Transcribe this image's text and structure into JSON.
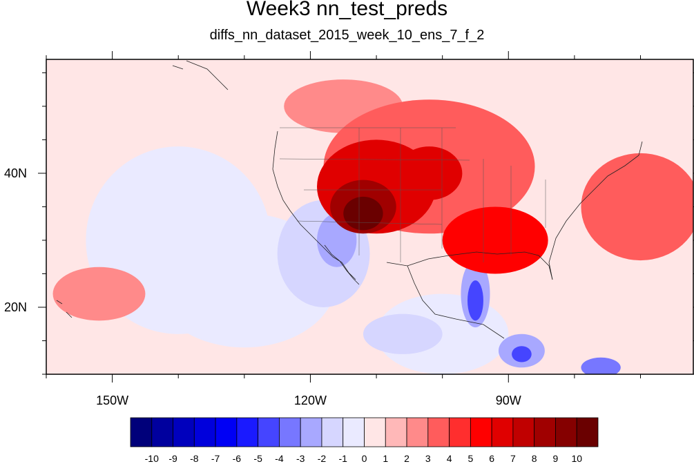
{
  "title": "Week3 nn_test_preds",
  "subtitle": "diffs_nn_dataset_2015_week_10_ens_7_f_2",
  "chart_data": {
    "type": "heatmap",
    "projection": "cylindrical-equidistant",
    "lon_range": [
      -160,
      -62
    ],
    "lat_range": [
      10,
      57
    ],
    "x_ticks": [
      {
        "value": -150,
        "label": "150W"
      },
      {
        "value": -120,
        "label": "120W"
      },
      {
        "value": -90,
        "label": "90W"
      }
    ],
    "y_ticks": [
      {
        "value": 20,
        "label": "20N"
      },
      {
        "value": 40,
        "label": "40N"
      }
    ],
    "colorbar": {
      "levels": [
        -10,
        -9,
        -8,
        -7,
        -6,
        -5,
        -4,
        -3,
        -2,
        -1,
        0,
        1,
        2,
        3,
        4,
        5,
        6,
        7,
        8,
        9,
        10
      ],
      "colors": [
        "#00007a",
        "#00009e",
        "#0000bd",
        "#0000dc",
        "#0000f5",
        "#1a1aff",
        "#4545ff",
        "#7777ff",
        "#a8a8ff",
        "#d6d6ff",
        "#eaeaff",
        "#ffe6e6",
        "#ffb8b8",
        "#ff8a8a",
        "#ff5c5c",
        "#ff2e2e",
        "#ff0000",
        "#e00000",
        "#c00000",
        "#a00000",
        "#850000",
        "#6a0000"
      ]
    },
    "background_anomaly": 0.5,
    "anomaly_regions": [
      {
        "desc": "cool Pacific",
        "lon": -140,
        "lat": 30,
        "value": -1,
        "rlon": 14,
        "rlat": 14
      },
      {
        "desc": "cool Pacific south",
        "lon": -130,
        "lat": 24,
        "value": -1,
        "rlon": 14,
        "rlat": 10
      },
      {
        "desc": "cool Pacific mid",
        "lon": -118,
        "lat": 28,
        "value": -2,
        "rlon": 7,
        "rlat": 8
      },
      {
        "desc": "cool Pacific coast",
        "lon": -116,
        "lat": 30,
        "value": -3,
        "rlon": 3,
        "rlat": 4
      },
      {
        "desc": "cool east Pacific",
        "lon": -100,
        "lat": 16,
        "value": -1,
        "rlon": 10,
        "rlat": 6
      },
      {
        "desc": "cool east Pacific",
        "lon": -106,
        "lat": 16,
        "value": -2,
        "rlon": 6,
        "rlat": 3
      },
      {
        "desc": "cool Gulf of Mexico",
        "lon": -95,
        "lat": 22,
        "value": -3,
        "rlon": 2.2,
        "rlat": 5
      },
      {
        "desc": "cool Gulf of Mexico core",
        "lon": -95,
        "lat": 21,
        "value": -5,
        "rlon": 1.2,
        "rlat": 3
      },
      {
        "desc": "cool Caribbean",
        "lon": -88,
        "lat": 13.5,
        "value": -3,
        "rlon": 3.5,
        "rlat": 2.5
      },
      {
        "desc": "cool Caribbean core",
        "lon": -88,
        "lat": 13,
        "value": -5,
        "rlon": 1.5,
        "rlat": 1.2
      },
      {
        "desc": "cool south edge",
        "lon": -76,
        "lat": 11,
        "value": -4,
        "rlon": 3,
        "rlat": 1.5
      },
      {
        "desc": "warm North America",
        "lon": -102,
        "lat": 41,
        "value": 3,
        "rlon": 16,
        "rlat": 10
      },
      {
        "desc": "warm Gulf coast",
        "lon": -92,
        "lat": 30,
        "value": 5,
        "rlon": 8,
        "rlat": 5
      },
      {
        "desc": "warm Atlantic",
        "lon": -70,
        "lat": 35,
        "value": 3,
        "rlon": 9,
        "rlat": 8
      },
      {
        "desc": "warm west",
        "lon": -110,
        "lat": 38,
        "value": 6,
        "rlon": 9,
        "rlat": 7
      },
      {
        "desc": "warm plains",
        "lon": -102,
        "lat": 40,
        "value": 6,
        "rlon": 5,
        "rlat": 4
      },
      {
        "desc": "hot southwest",
        "lon": -112,
        "lat": 35,
        "value": 8,
        "rlon": 5,
        "rlat": 4
      },
      {
        "desc": "hot southwest core",
        "lon": -112,
        "lat": 34,
        "value": 10,
        "rlon": 3,
        "rlat": 2.5
      },
      {
        "desc": "warm north Pacific",
        "lon": -115,
        "lat": 50,
        "value": 2,
        "rlon": 9,
        "rlat": 4
      },
      {
        "desc": "warm Hawaii region",
        "lon": -152,
        "lat": 22,
        "value": 2,
        "rlon": 7,
        "rlat": 4
      }
    ]
  }
}
